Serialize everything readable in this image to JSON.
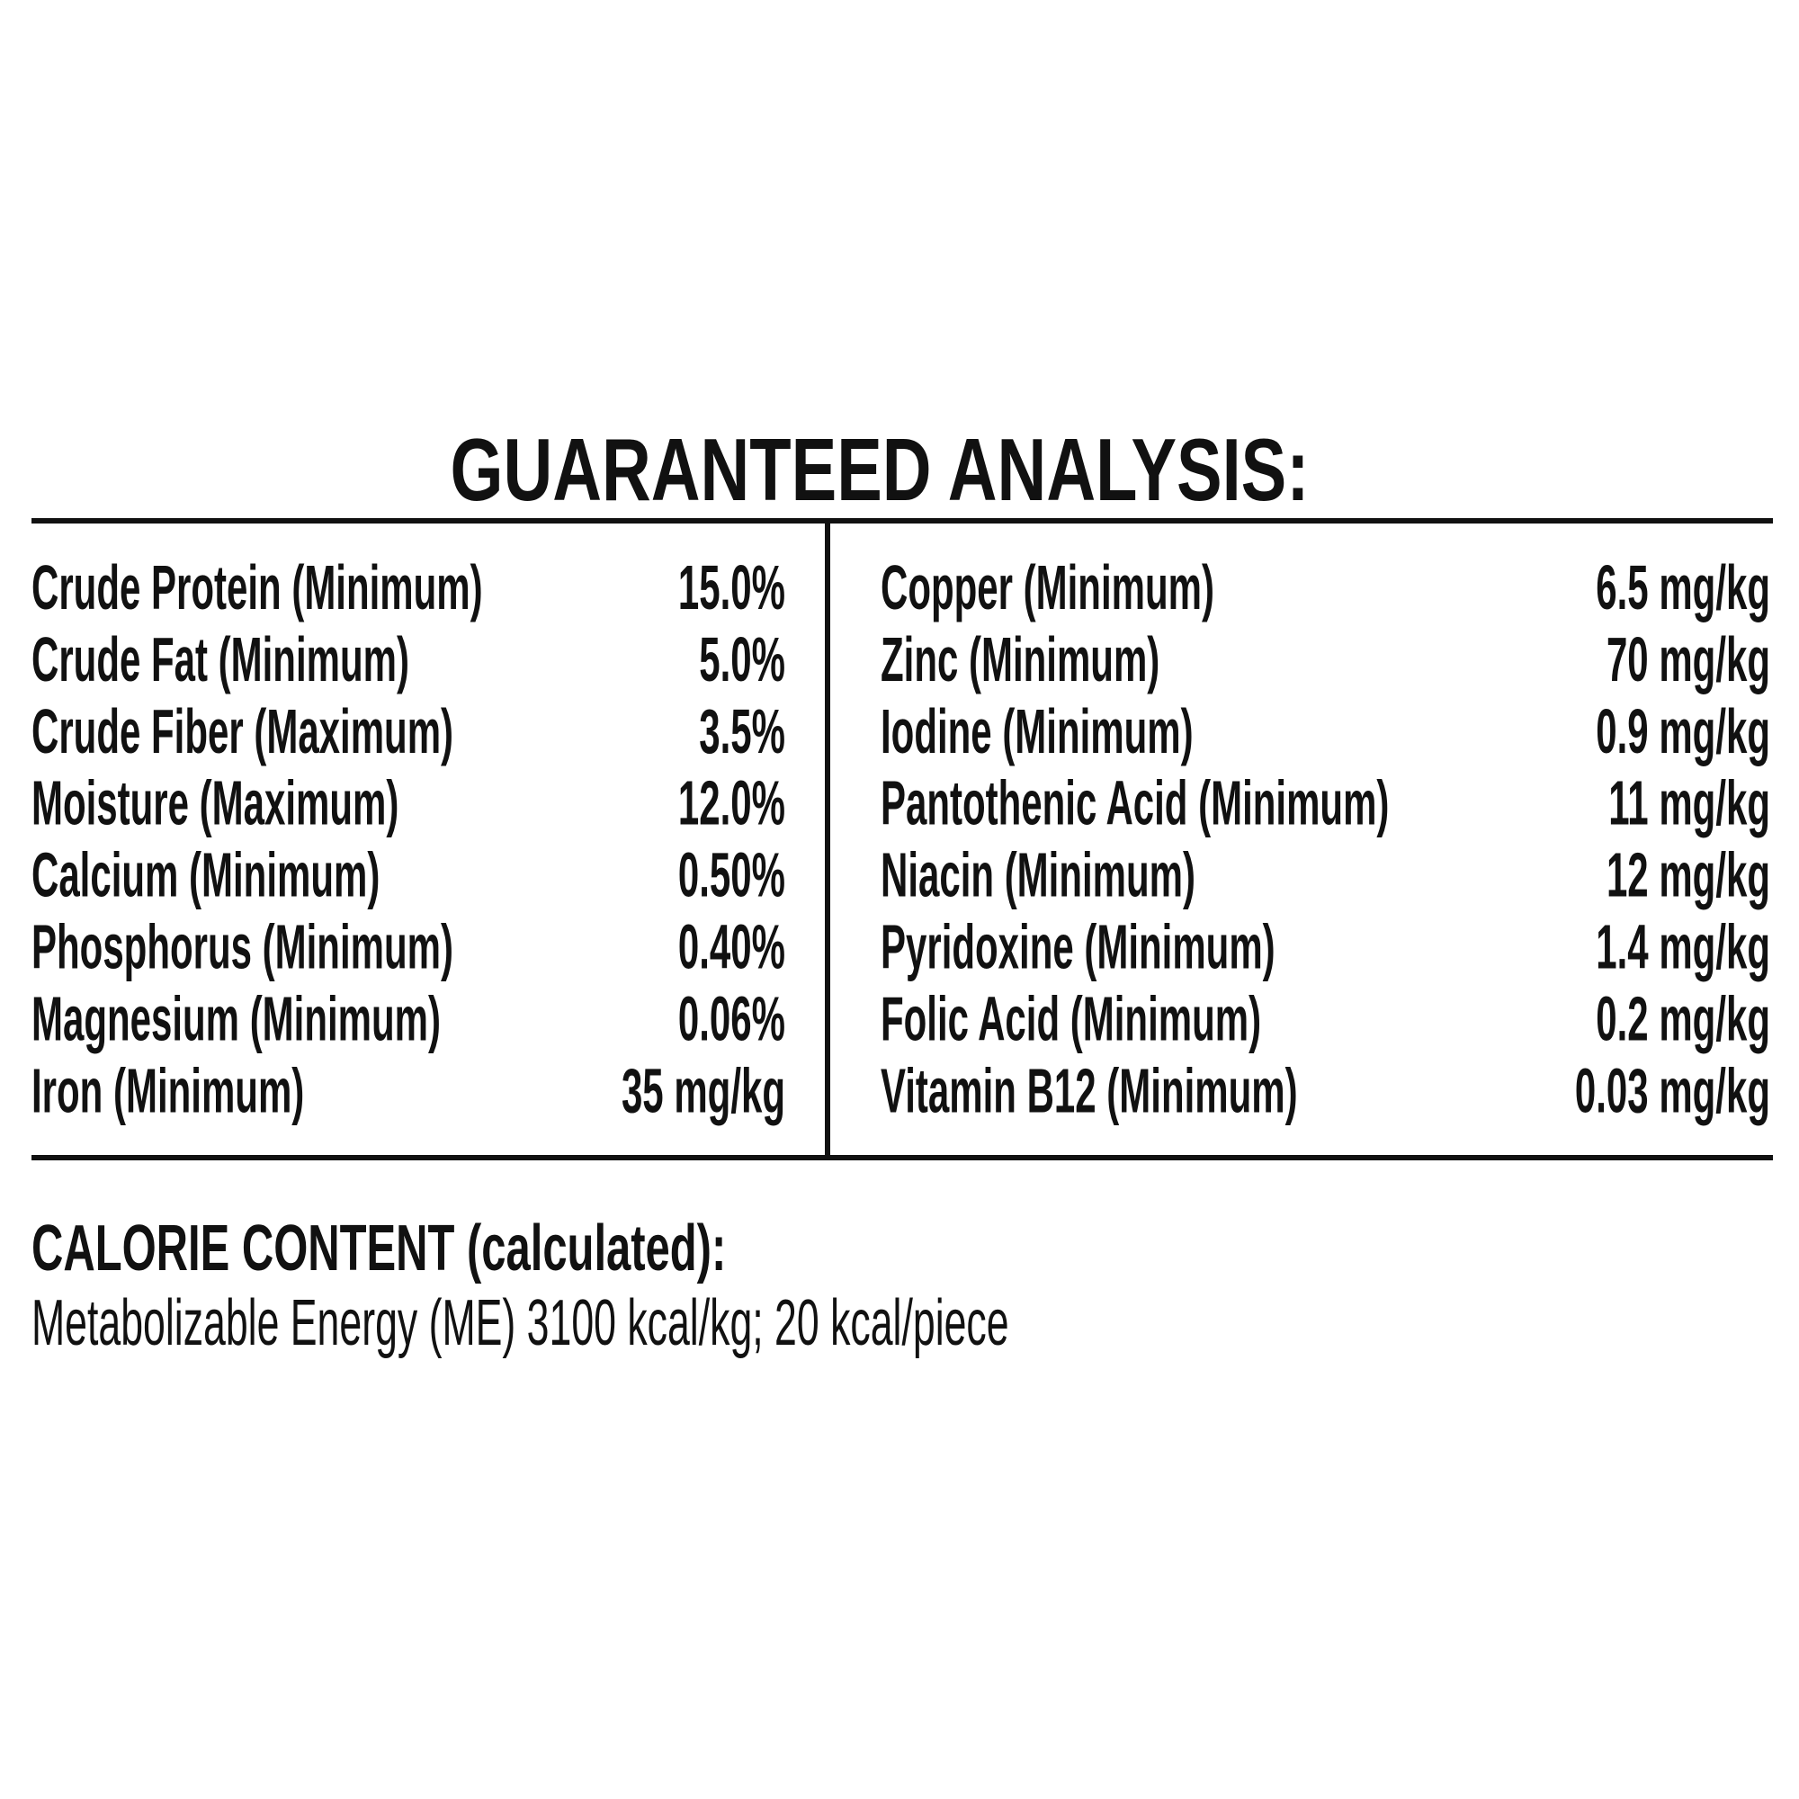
{
  "title": "GUARANTEED ANALYSIS:",
  "left_rows": [
    {
      "label": "Crude Protein (Minimum)",
      "value": "15.0%"
    },
    {
      "label": "Crude Fat (Minimum)",
      "value": "5.0%"
    },
    {
      "label": "Crude Fiber (Maximum)",
      "value": "3.5%"
    },
    {
      "label": "Moisture (Maximum)",
      "value": "12.0%"
    },
    {
      "label": "Calcium (Minimum)",
      "value": "0.50%"
    },
    {
      "label": "Phosphorus (Minimum)",
      "value": "0.40%"
    },
    {
      "label": "Magnesium (Minimum)",
      "value": "0.06%"
    },
    {
      "label": "Iron (Minimum)",
      "value": "35 mg/kg"
    }
  ],
  "right_rows": [
    {
      "label": "Copper (Minimum)",
      "value": "6.5 mg/kg"
    },
    {
      "label": "Zinc (Minimum)",
      "value": "70 mg/kg"
    },
    {
      "label": "Iodine (Minimum)",
      "value": "0.9 mg/kg"
    },
    {
      "label": "Pantothenic Acid (Minimum)",
      "value": "11 mg/kg"
    },
    {
      "label": "Niacin (Minimum)",
      "value": "12 mg/kg"
    },
    {
      "label": "Pyridoxine (Minimum)",
      "value": "1.4 mg/kg"
    },
    {
      "label": "Folic Acid (Minimum)",
      "value": "0.2 mg/kg"
    },
    {
      "label": "Vitamin B12 (Minimum)",
      "value": "0.03 mg/kg"
    }
  ],
  "calorie_heading": "CALORIE CONTENT (calculated):",
  "calorie_text": "Metabolizable Energy (ME) 3100 kcal/kg; 20 kcal/piece"
}
